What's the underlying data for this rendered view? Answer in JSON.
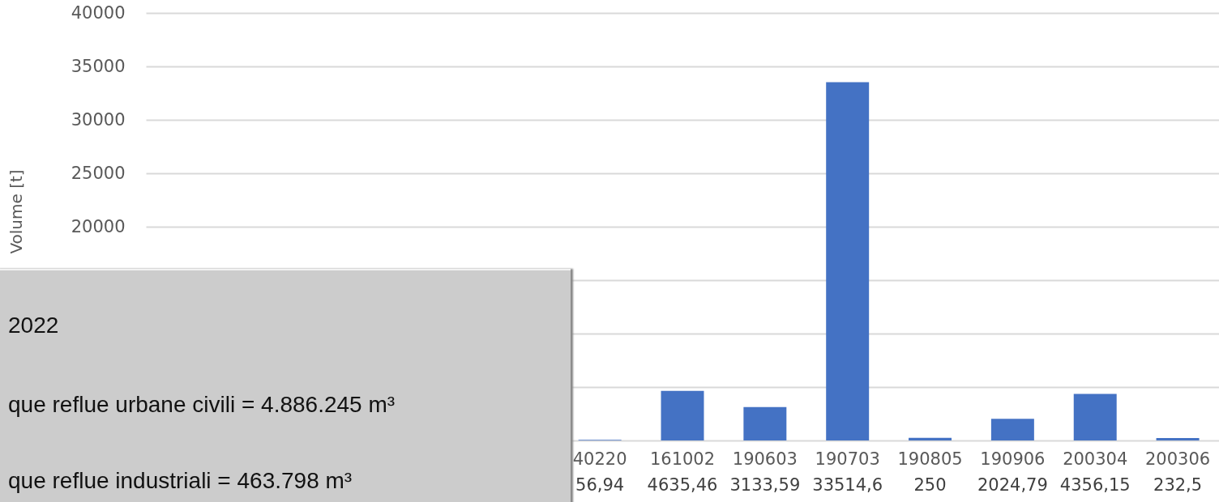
{
  "chart_data": {
    "type": "bar",
    "ylabel": "Volume [t]",
    "categories": [
      null,
      null,
      null,
      null,
      null,
      "40220",
      "161002",
      "190603",
      "190703",
      "190805",
      "190906",
      "200304",
      "200306"
    ],
    "values": [
      null,
      null,
      null,
      null,
      null,
      56.94,
      4635.46,
      3133.59,
      33514.6,
      250,
      2024.79,
      4356.15,
      232.5
    ],
    "value_labels": [
      null,
      null,
      null,
      null,
      null,
      "56,94",
      "4635,46",
      "3133,59",
      "33514,6",
      "250",
      "2024,79",
      "4356,15",
      "232,5"
    ],
    "color": "#4472c4",
    "ylim": [
      0,
      40000
    ],
    "yticks": [
      {
        "value": 0,
        "label": null
      },
      {
        "value": 5000,
        "label": null
      },
      {
        "value": 10000,
        "label": null
      },
      {
        "value": 15000,
        "label": null
      },
      20000,
      25000,
      30000,
      35000,
      40000
    ],
    "grid": "y",
    "annotations": [
      "2022",
      "que reflue urbane civili = 4.886.245 m³",
      "que reflue industriali = 463.798 m³"
    ]
  }
}
